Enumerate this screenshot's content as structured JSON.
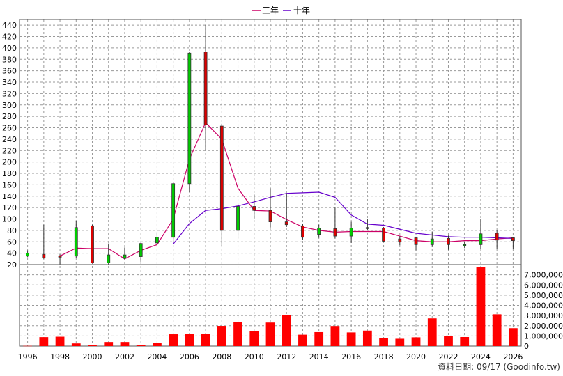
{
  "legend": [
    {
      "label": "三年",
      "color": "#cc0066"
    },
    {
      "label": "十年",
      "color": "#6600cc"
    }
  ],
  "footer": "資料日期: 09/17  (Goodinfo.tw)",
  "chart_data": {
    "type": "candlestick+line+bar",
    "price_axis": {
      "min": 20,
      "max": 450,
      "ticks": [
        20,
        40,
        60,
        80,
        100,
        120,
        140,
        160,
        180,
        200,
        220,
        240,
        260,
        280,
        300,
        320,
        340,
        360,
        380,
        400,
        420,
        440
      ]
    },
    "volume_axis": {
      "min": 0,
      "max": 8000000,
      "ticks": [
        0,
        1000000,
        2000000,
        3000000,
        4000000,
        5000000,
        6000000,
        7000000
      ],
      "tick_labels": [
        "0",
        "1,000,000",
        "2,000,000",
        "3,000,000",
        "4,000,000",
        "5,000,000",
        "6,000,000",
        "7,000,000"
      ]
    },
    "x_axis": {
      "min": 1996,
      "max": 2026,
      "tick_labels": [
        "1996",
        "1998",
        "2000",
        "2002",
        "2004",
        "2006",
        "2008",
        "2010",
        "2012",
        "2014",
        "2016",
        "2018",
        "2020",
        "2022",
        "2024",
        "2026"
      ]
    },
    "candles": [
      {
        "year": 1996,
        "open": 35,
        "close": 40,
        "high": 45,
        "low": 33
      },
      {
        "year": 1997,
        "open": 38,
        "close": 32,
        "high": 90,
        "low": 30
      },
      {
        "year": 1998,
        "open": 35,
        "close": 33,
        "high": 38,
        "low": 20
      },
      {
        "year": 1999,
        "open": 35,
        "close": 85,
        "high": 97,
        "low": 32
      },
      {
        "year": 2000,
        "open": 88,
        "close": 23,
        "high": 90,
        "low": 22
      },
      {
        "year": 2001,
        "open": 23,
        "close": 37,
        "high": 57,
        "low": 20
      },
      {
        "year": 2002,
        "open": 31,
        "close": 37,
        "high": 50,
        "low": 28
      },
      {
        "year": 2003,
        "open": 34,
        "close": 57,
        "high": 58,
        "low": 25
      },
      {
        "year": 2004,
        "open": 58,
        "close": 68,
        "high": 77,
        "low": 55
      },
      {
        "year": 2005,
        "open": 68,
        "close": 162,
        "high": 165,
        "low": 60
      },
      {
        "year": 2006,
        "open": 162,
        "close": 391,
        "high": 393,
        "low": 147
      },
      {
        "year": 2007,
        "open": 393,
        "close": 265,
        "high": 440,
        "low": 220
      },
      {
        "year": 2008,
        "open": 263,
        "close": 80,
        "high": 267,
        "low": 53
      },
      {
        "year": 2009,
        "open": 80,
        "close": 122,
        "high": 127,
        "low": 66
      },
      {
        "year": 2010,
        "open": 122,
        "close": 115,
        "high": 143,
        "low": 100
      },
      {
        "year": 2011,
        "open": 115,
        "close": 95,
        "high": 154,
        "low": 85
      },
      {
        "year": 2012,
        "open": 95,
        "close": 90,
        "high": 145,
        "low": 86
      },
      {
        "year": 2013,
        "open": 88,
        "close": 68,
        "high": 92,
        "low": 64
      },
      {
        "year": 2014,
        "open": 73,
        "close": 84,
        "high": 90,
        "low": 67
      },
      {
        "year": 2015,
        "open": 83,
        "close": 70,
        "high": 120,
        "low": 66
      },
      {
        "year": 2016,
        "open": 70,
        "close": 84,
        "high": 95,
        "low": 58
      },
      {
        "year": 2017,
        "open": 85,
        "close": 85,
        "high": 100,
        "low": 80
      },
      {
        "year": 2018,
        "open": 84,
        "close": 61,
        "high": 86,
        "low": 60
      },
      {
        "year": 2019,
        "open": 65,
        "close": 60,
        "high": 70,
        "low": 54
      },
      {
        "year": 2020,
        "open": 67,
        "close": 55,
        "high": 69,
        "low": 45
      },
      {
        "year": 2021,
        "open": 55,
        "close": 65,
        "high": 78,
        "low": 51
      },
      {
        "year": 2022,
        "open": 66,
        "close": 55,
        "high": 71,
        "low": 46
      },
      {
        "year": 2023,
        "open": 55,
        "close": 55,
        "high": 60,
        "low": 49
      },
      {
        "year": 2024,
        "open": 55,
        "close": 74,
        "high": 100,
        "low": 48
      },
      {
        "year": 2025,
        "open": 75,
        "close": 63,
        "high": 80,
        "low": 48
      },
      {
        "year": 2026,
        "open": 67,
        "close": 62,
        "high": 68,
        "low": 48
      }
    ],
    "series": [
      {
        "name": "三年",
        "color": "#cc0066",
        "x": [
          1998,
          1999,
          2000,
          2001,
          2002,
          2003,
          2004,
          2005,
          2006,
          2007,
          2008,
          2009,
          2010,
          2011,
          2012,
          2013,
          2014,
          2015,
          2016,
          2017,
          2018,
          2019,
          2020,
          2021,
          2022,
          2023,
          2024,
          2025,
          2026
        ],
        "values": [
          35,
          49,
          48,
          48,
          30,
          45,
          55,
          100,
          205,
          269,
          240,
          154,
          115,
          114,
          99,
          86,
          80,
          77,
          78,
          78,
          78,
          70,
          62,
          60,
          60,
          62,
          62,
          65,
          67
        ]
      },
      {
        "name": "十年",
        "color": "#6600cc",
        "x": [
          2005,
          2006,
          2007,
          2008,
          2009,
          2010,
          2011,
          2012,
          2013,
          2014,
          2015,
          2016,
          2017,
          2018,
          2019,
          2020,
          2021,
          2022,
          2023,
          2024,
          2025,
          2026
        ],
        "values": [
          56,
          92,
          115,
          118,
          123,
          130,
          138,
          145,
          146,
          147,
          138,
          107,
          91,
          89,
          82,
          75,
          72,
          69,
          68,
          68,
          67,
          66
        ]
      }
    ],
    "volume": [
      {
        "year": 1996,
        "value": 20000
      },
      {
        "year": 1997,
        "value": 880000
      },
      {
        "year": 1998,
        "value": 920000
      },
      {
        "year": 1999,
        "value": 260000
      },
      {
        "year": 2000,
        "value": 120000
      },
      {
        "year": 2001,
        "value": 400000
      },
      {
        "year": 2002,
        "value": 400000
      },
      {
        "year": 2003,
        "value": 100000
      },
      {
        "year": 2004,
        "value": 280000
      },
      {
        "year": 2005,
        "value": 1160000
      },
      {
        "year": 2006,
        "value": 1210000
      },
      {
        "year": 2007,
        "value": 1190000
      },
      {
        "year": 2008,
        "value": 1980000
      },
      {
        "year": 2009,
        "value": 2360000
      },
      {
        "year": 2010,
        "value": 1480000
      },
      {
        "year": 2011,
        "value": 2310000
      },
      {
        "year": 2012,
        "value": 3010000
      },
      {
        "year": 2013,
        "value": 1120000
      },
      {
        "year": 2014,
        "value": 1370000
      },
      {
        "year": 2015,
        "value": 1970000
      },
      {
        "year": 2016,
        "value": 1340000
      },
      {
        "year": 2017,
        "value": 1520000
      },
      {
        "year": 2018,
        "value": 770000
      },
      {
        "year": 2019,
        "value": 720000
      },
      {
        "year": 2020,
        "value": 860000
      },
      {
        "year": 2021,
        "value": 2720000
      },
      {
        "year": 2022,
        "value": 1010000
      },
      {
        "year": 2023,
        "value": 890000
      },
      {
        "year": 2024,
        "value": 7790000
      },
      {
        "year": 2025,
        "value": 3120000
      },
      {
        "year": 2026,
        "value": 1760000
      }
    ],
    "colors": {
      "up": "#00cc00",
      "down": "#dd0000",
      "volume": "#ff0000",
      "grid": "#999999"
    },
    "grid": true
  }
}
